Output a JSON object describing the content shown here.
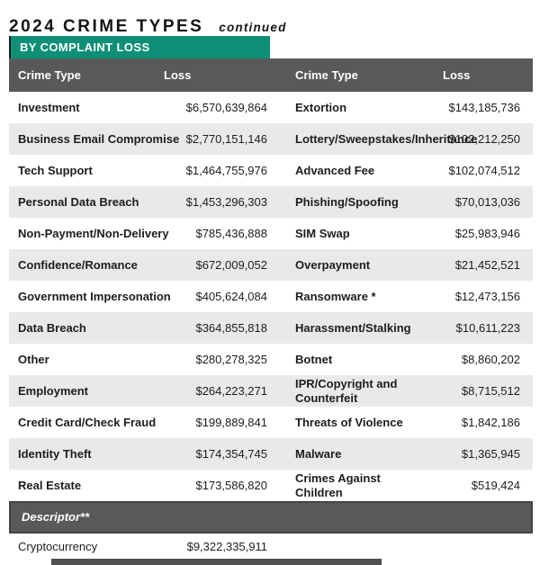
{
  "header": {
    "title": "2024 CRIME TYPES",
    "continued": "continued",
    "section_label": "BY COMPLAINT LOSS"
  },
  "table": {
    "headers": {
      "col1": "Crime Type",
      "col2": "Loss",
      "col3": "Crime Type",
      "col4": "Loss"
    },
    "rows": [
      {
        "left_type": "Investment",
        "left_loss": "$6,570,639,864",
        "right_type": "Extortion",
        "right_loss": "$143,185,736"
      },
      {
        "left_type": "Business Email Compromise",
        "left_loss": "$2,770,151,146",
        "right_type": "Lottery/Sweepstakes/Inheritance",
        "right_loss": "$102,212,250"
      },
      {
        "left_type": "Tech Support",
        "left_loss": "$1,464,755,976",
        "right_type": "Advanced Fee",
        "right_loss": "$102,074,512"
      },
      {
        "left_type": "Personal Data Breach",
        "left_loss": "$1,453,296,303",
        "right_type": "Phishing/Spoofing",
        "right_loss": "$70,013,036"
      },
      {
        "left_type": "Non-Payment/Non-Delivery",
        "left_loss": "$785,436,888",
        "right_type": "SIM Swap",
        "right_loss": "$25,983,946"
      },
      {
        "left_type": "Confidence/Romance",
        "left_loss": "$672,009,052",
        "right_type": "Overpayment",
        "right_loss": "$21,452,521"
      },
      {
        "left_type": "Government Impersonation",
        "left_loss": "$405,624,084",
        "right_type": "Ransomware *",
        "right_loss": "$12,473,156"
      },
      {
        "left_type": "Data Breach",
        "left_loss": "$364,855,818",
        "right_type": "Harassment/Stalking",
        "right_loss": "$10,611,223"
      },
      {
        "left_type": "Other",
        "left_loss": "$280,278,325",
        "right_type": "Botnet",
        "right_loss": "$8,860,202"
      },
      {
        "left_type": "Employment",
        "left_loss": "$264,223,271",
        "right_type": "IPR/Copyright and Counterfeit",
        "right_loss": "$8,715,512"
      },
      {
        "left_type": "Credit Card/Check Fraud",
        "left_loss": "$199,889,841",
        "right_type": "Threats of Violence",
        "right_loss": "$1,842,186"
      },
      {
        "left_type": "Identity Theft",
        "left_loss": "$174,354,745",
        "right_type": "Malware",
        "right_loss": "$1,365,945"
      },
      {
        "left_type": "Real Estate",
        "left_loss": "$173,586,820",
        "right_type": "Crimes Against Children",
        "right_loss": "$519,424"
      }
    ],
    "descriptor_label": "Descriptor**",
    "descriptor_row": {
      "type": "Cryptocurrency",
      "loss": "$9,322,335,911"
    }
  },
  "colors": {
    "teal_bar": "#0f9076",
    "header_gray": "#58595b",
    "stripe_gray": "#e9e9ea",
    "descriptor_border": "#434345",
    "bottom_cut_bar": "#505052",
    "text": "#1d1d1f"
  }
}
